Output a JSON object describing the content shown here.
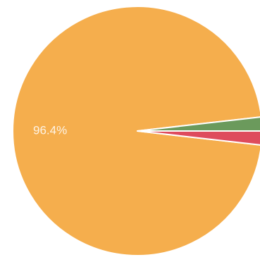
{
  "chart_data": {
    "type": "pie",
    "title": "",
    "legend": "none",
    "series": [
      {
        "values": [
          96.4,
          1.8,
          1.8
        ],
        "colors": [
          "#F5AE4D",
          "#6B9A5C",
          "#DE4B5D"
        ],
        "labels": [
          "96.4%",
          "",
          ""
        ]
      }
    ]
  }
}
